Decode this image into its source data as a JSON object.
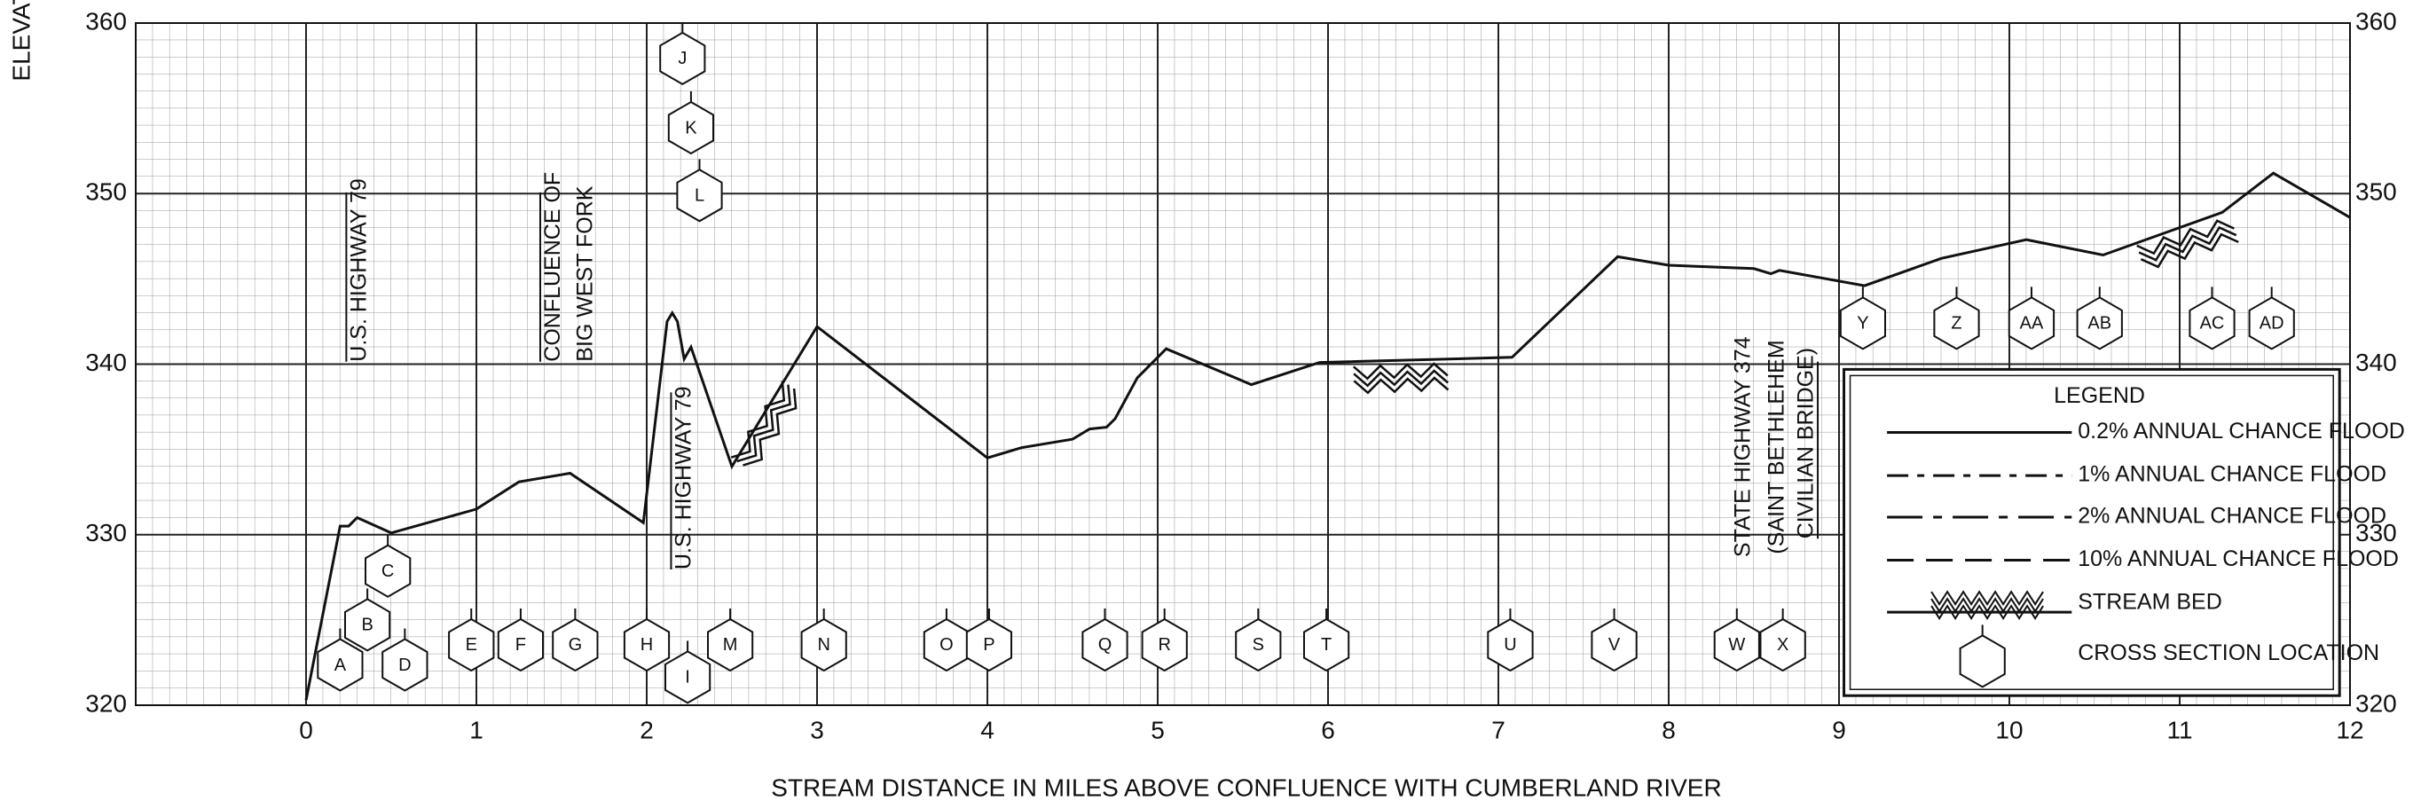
{
  "chart_data": {
    "type": "line",
    "y_axis_label": "ELEVAT",
    "x_axis_label": "STREAM DISTANCE IN MILES ABOVE CONFLUENCE WITH CUMBERLAND RIVER",
    "xlim": [
      -1,
      12
    ],
    "xticks": [
      0,
      1,
      2,
      3,
      4,
      5,
      6,
      7,
      8,
      9,
      10,
      11,
      12
    ],
    "ylim": [
      320,
      360
    ],
    "yticks": [
      320,
      330,
      340,
      350,
      360
    ],
    "grid": true,
    "series": [
      {
        "name": "0.2% ANNUAL CHANCE FLOOD",
        "color": "#111111",
        "x": [
          0,
          0.2,
          0.25,
          0.3,
          0.5,
          1.0,
          1.25,
          1.55,
          1.98,
          2.12,
          2.15,
          2.18,
          2.22,
          2.26,
          2.5,
          3.0,
          4.0,
          4.2,
          4.5,
          4.6,
          4.7,
          4.75,
          4.88,
          5.05,
          5.55,
          5.95,
          7.08,
          7.7,
          8.0,
          8.5,
          8.6,
          8.65,
          9.15,
          9.6,
          10.1,
          10.55,
          11.25,
          11.55,
          12
        ],
        "values": [
          320.3,
          330.5,
          330.5,
          331,
          330.1,
          331.5,
          333.1,
          333.6,
          330.7,
          342.5,
          343,
          342.5,
          340.3,
          341,
          334,
          342.2,
          334.5,
          335.1,
          335.6,
          336.2,
          336.3,
          336.8,
          339.2,
          340.9,
          338.8,
          340.1,
          340.4,
          346.3,
          345.8,
          345.6,
          345.3,
          345.5,
          344.6,
          346.2,
          347.3,
          346.4,
          348.9,
          351.2,
          348.6
        ]
      }
    ],
    "stream_bed": [
      {
        "x": [
          2.5,
          2.8
        ],
        "values": [
          334.5,
          339
        ]
      },
      {
        "x": [
          6.15,
          6.7
        ],
        "values": [
          339.8,
          340.0
        ]
      },
      {
        "x": [
          10.75,
          11.3
        ],
        "values": [
          346.9,
          348.6
        ]
      }
    ],
    "cross_sections": [
      {
        "label": "A",
        "x": 0.2
      },
      {
        "label": "B",
        "x": 0.36
      },
      {
        "label": "C",
        "x": 0.48
      },
      {
        "label": "D",
        "x": 0.58
      },
      {
        "label": "E",
        "x": 0.97
      },
      {
        "label": "F",
        "x": 1.26
      },
      {
        "label": "G",
        "x": 1.58
      },
      {
        "label": "H",
        "x": 2.0
      },
      {
        "label": "I",
        "x": 2.24
      },
      {
        "label": "J",
        "x": 2.21
      },
      {
        "label": "K",
        "x": 2.26
      },
      {
        "label": "L",
        "x": 2.31
      },
      {
        "label": "M",
        "x": 2.49
      },
      {
        "label": "N",
        "x": 3.04
      },
      {
        "label": "O",
        "x": 3.76
      },
      {
        "label": "P",
        "x": 4.01
      },
      {
        "label": "Q",
        "x": 4.69
      },
      {
        "label": "R",
        "x": 5.04
      },
      {
        "label": "S",
        "x": 5.59
      },
      {
        "label": "T",
        "x": 5.99
      },
      {
        "label": "U",
        "x": 7.07
      },
      {
        "label": "V",
        "x": 7.68
      },
      {
        "label": "W",
        "x": 8.4
      },
      {
        "label": "X",
        "x": 8.67
      },
      {
        "label": "Y",
        "x": 9.14
      },
      {
        "label": "Z",
        "x": 9.69
      },
      {
        "label": "AA",
        "x": 10.13
      },
      {
        "label": "AB",
        "x": 10.53
      },
      {
        "label": "AC",
        "x": 11.19
      },
      {
        "label": "AD",
        "x": 11.54
      }
    ],
    "annotations": [
      "U.S. HIGHWAY 79",
      "CONFLUENCE OF",
      "BIG WEST FORK",
      "U.S. HIGHWAY 79",
      "STATE HIGHWAY 374",
      "(SAINT BETHLEHEM",
      "CIVILIAN BRIDGE)"
    ],
    "legend": {
      "title": "LEGEND",
      "items": [
        {
          "label": "0.2% ANNUAL CHANCE FLOOD",
          "style": "solid"
        },
        {
          "label": "1% ANNUAL CHANCE FLOOD",
          "style": "dash"
        },
        {
          "label": "2% ANNUAL CHANCE FLOOD",
          "style": "dashdot"
        },
        {
          "label": "10% ANNUAL CHANCE FLOOD",
          "style": "longdash"
        },
        {
          "label": "STREAM BED",
          "style": "streambed"
        },
        {
          "label": "CROSS SECTION LOCATION",
          "style": "crosssection"
        }
      ]
    }
  }
}
